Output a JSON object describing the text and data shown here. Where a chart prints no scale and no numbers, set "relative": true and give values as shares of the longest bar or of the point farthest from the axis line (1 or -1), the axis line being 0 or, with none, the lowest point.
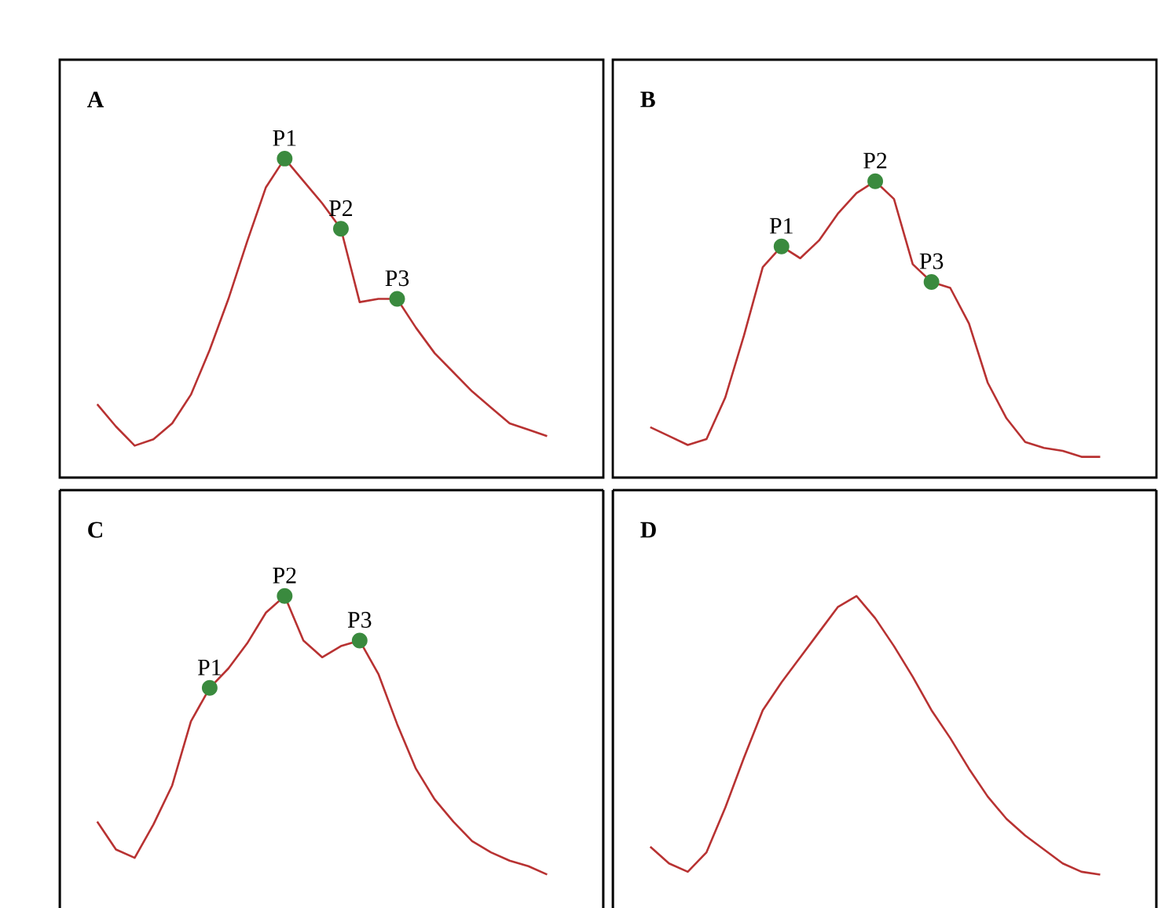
{
  "chart_data": [
    {
      "type": "line",
      "title": "A",
      "relative": true,
      "categories": [
        null,
        null,
        null,
        null,
        null,
        null,
        null,
        null,
        null,
        null,
        null,
        null,
        null,
        null,
        null,
        null,
        null,
        null,
        null,
        null,
        null,
        null,
        null,
        null,
        null
      ],
      "series": [
        {
          "color": "#b83232",
          "values": [
            0.23,
            0.16,
            0.1,
            0.12,
            0.17,
            0.26,
            0.4,
            0.56,
            0.74,
            0.91,
            1.0,
            0.93,
            0.86,
            0.78,
            0.55,
            0.56,
            0.56,
            0.47,
            0.39,
            0.33,
            0.27,
            0.22,
            0.17,
            0.15,
            0.13
          ]
        }
      ],
      "annotations": [
        {
          "text": "P1",
          "y": 1.0
        },
        {
          "text": "P2",
          "y": 0.78
        },
        {
          "text": "P3",
          "y": 0.56
        }
      ]
    },
    {
      "type": "line",
      "title": "B",
      "relative": true,
      "categories": [
        null,
        null,
        null,
        null,
        null,
        null,
        null,
        null,
        null,
        null,
        null,
        null,
        null,
        null,
        null,
        null,
        null,
        null,
        null,
        null,
        null,
        null,
        null,
        null,
        null
      ],
      "series": [
        {
          "color": "#b83232",
          "values": [
            0.17,
            0.14,
            0.11,
            0.13,
            0.27,
            0.48,
            0.71,
            0.78,
            0.74,
            0.8,
            0.89,
            0.96,
            1.0,
            0.94,
            0.72,
            0.66,
            0.64,
            0.52,
            0.32,
            0.2,
            0.12,
            0.1,
            0.09,
            0.07,
            0.07
          ]
        }
      ],
      "annotations": [
        {
          "text": "P1",
          "y": 0.78
        },
        {
          "text": "P2",
          "y": 1.0
        },
        {
          "text": "P3",
          "y": 0.66
        }
      ]
    },
    {
      "type": "line",
      "title": "C",
      "relative": true,
      "categories": [
        null,
        null,
        null,
        null,
        null,
        null,
        null,
        null,
        null,
        null,
        null,
        null,
        null,
        null,
        null,
        null,
        null,
        null,
        null,
        null,
        null,
        null,
        null,
        null,
        null
      ],
      "series": [
        {
          "color": "#b83232",
          "values": [
            0.19,
            0.09,
            0.06,
            0.18,
            0.32,
            0.55,
            0.67,
            0.74,
            0.83,
            0.94,
            1.0,
            0.84,
            0.78,
            0.82,
            0.84,
            0.72,
            0.54,
            0.38,
            0.27,
            0.19,
            0.12,
            0.08,
            0.05,
            0.03,
            0.0
          ]
        }
      ],
      "annotations": [
        {
          "text": "P1",
          "y": 0.67
        },
        {
          "text": "P2",
          "y": 1.0
        },
        {
          "text": "P3",
          "y": 0.84
        }
      ]
    },
    {
      "type": "line",
      "title": "D",
      "relative": true,
      "categories": [
        null,
        null,
        null,
        null,
        null,
        null,
        null,
        null,
        null,
        null,
        null,
        null,
        null,
        null,
        null,
        null,
        null,
        null,
        null,
        null,
        null,
        null,
        null,
        null,
        null
      ],
      "series": [
        {
          "color": "#b83232",
          "values": [
            0.1,
            0.04,
            0.01,
            0.08,
            0.24,
            0.42,
            0.59,
            0.69,
            0.78,
            0.87,
            0.96,
            1.0,
            0.92,
            0.82,
            0.71,
            0.59,
            0.49,
            0.38,
            0.28,
            0.2,
            0.14,
            0.09,
            0.04,
            0.01,
            0.0
          ]
        }
      ]
    }
  ]
}
